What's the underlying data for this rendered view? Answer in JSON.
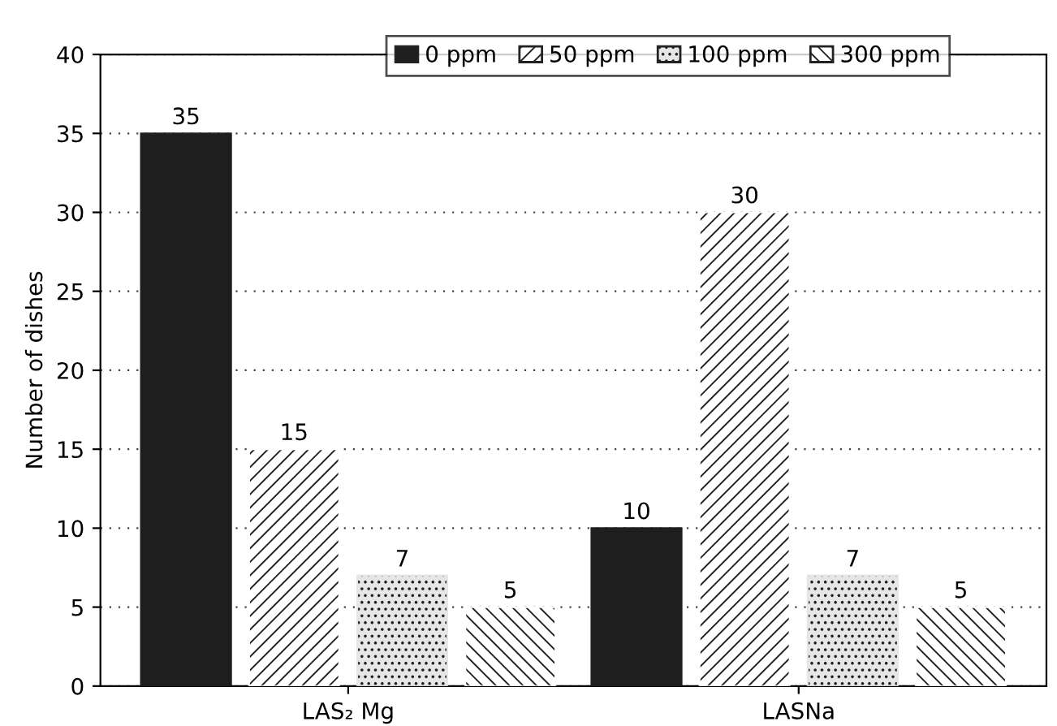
{
  "chart_data": {
    "type": "bar",
    "ylabel": "Number of dishes",
    "categories": [
      "LAS₂ Mg",
      "LASNa"
    ],
    "series": [
      {
        "name": "0 ppm",
        "color": "#1e1e1e",
        "values": [
          35,
          10
        ]
      },
      {
        "name": "50 ppm",
        "color": "#ffffff",
        "values": [
          15,
          30
        ]
      },
      {
        "name": "100 ppm",
        "color": "#e6e6e6",
        "values": [
          7,
          7
        ]
      },
      {
        "name": "300 ppm",
        "color": "#ffffff",
        "values": [
          5,
          5
        ]
      }
    ],
    "ylim": [
      0,
      40
    ],
    "yticks": [
      0,
      5,
      10,
      15,
      20,
      25,
      30,
      35,
      40
    ],
    "grid": "y",
    "legend": "top",
    "data_labels": true
  }
}
